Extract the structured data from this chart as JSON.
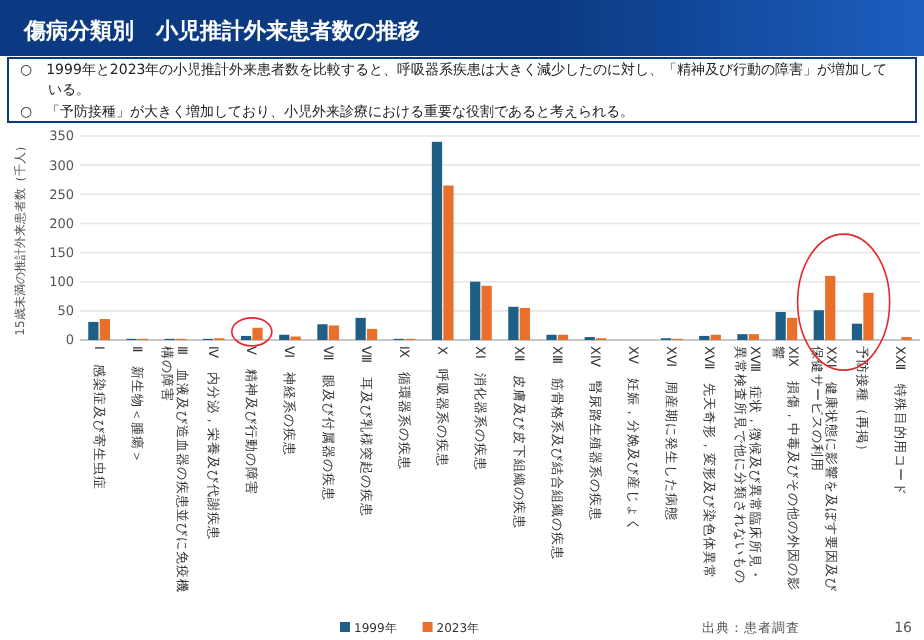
{
  "chart_data": {
    "type": "bar",
    "title": "傷病分類別　小児推計外来患者数の推移",
    "annotations": [
      "○　1999年と2023年の小児推計外来患者数を比較すると、呼吸器系疾患は大きく減少したのに対し、「精神及び行動の障害」が増加している。",
      "○　「予防接種」が大きく増加しており、小児外来診療における重要な役割であると考えられる。",
      "出典：患者調査",
      "16"
    ],
    "ylabel": "15歳未満の推計外来患者数（千人）",
    "categories": [
      "Ⅰ　感染症及び寄生虫症",
      "Ⅱ　新生物＜腫瘍＞",
      "Ⅲ　血液及び造血器の疾患並びに免疫機構の障害",
      "Ⅳ　内分泌，栄養及び代謝疾患",
      "Ⅴ　精神及び行動の障害",
      "Ⅵ　神経系の疾患",
      "Ⅶ　眼及び付属器の疾患",
      "Ⅷ　耳及び乳様突起の疾患",
      "Ⅸ　循環器系の疾患",
      "Ⅹ　呼吸器系の疾患",
      "ⅩⅠ　消化器系の疾患",
      "ⅩⅡ　皮膚及び皮下組織の疾患",
      "ⅩⅢ　筋骨格系及び結合組織の疾患",
      "ⅩⅣ　腎尿路生殖器系の疾患",
      "ⅩⅤ　妊娠，分娩及び産じょく",
      "ⅩⅥ　周産期に発生した病態",
      "ⅩⅦ　先天奇形，変形及び染色体異常",
      "ⅩⅧ　症状，徴候及び異常臨床所見・異常検査所見で他に分類されないもの",
      "ⅩⅨ　損傷，中毒及びその他の外因の影響",
      "ⅩⅩⅠ　健康状態に影響を及ぼす要因及び保健サービスの利用",
      "予防接種（再掲）",
      "ⅩⅩⅡ　特殊目的用コード"
    ],
    "series": [
      {
        "name": "1999年",
        "color": "#1f5f85",
        "values": [
          31,
          2,
          2,
          2,
          7,
          9,
          27,
          38,
          2,
          340,
          100,
          57,
          9,
          5,
          0,
          3,
          7,
          10,
          48,
          51,
          28,
          0
        ]
      },
      {
        "name": "2023年",
        "color": "#e8702a",
        "values": [
          36,
          2,
          2,
          3,
          21,
          6,
          25,
          19,
          2,
          265,
          93,
          55,
          9,
          3,
          0,
          2,
          9,
          10,
          38,
          110,
          81,
          5
        ]
      }
    ],
    "ylim": [
      0,
      350
    ],
    "yticks": [
      0,
      50,
      100,
      150,
      200,
      250,
      300,
      350
    ],
    "grid": "y",
    "legend": "bottom"
  }
}
